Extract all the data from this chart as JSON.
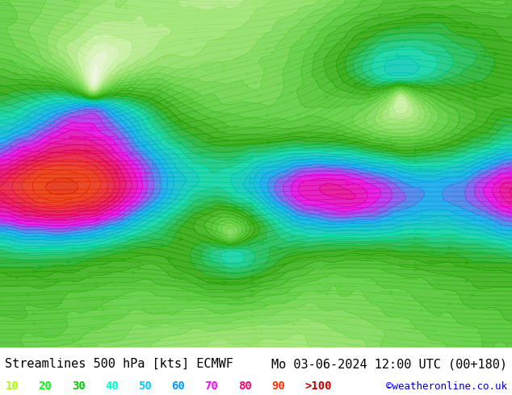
{
  "title_left": "Streamlines 500 hPa [kts] ECMWF",
  "title_right": "Mo 03-06-2024 12:00 UTC (00+180)",
  "credit": "©weatheronline.co.uk",
  "legend_values": [
    "10",
    "20",
    "30",
    "40",
    "50",
    "60",
    "70",
    "80",
    "90",
    ">100"
  ],
  "legend_colors": [
    "#aaff00",
    "#00ff00",
    "#00cc00",
    "#00ffcc",
    "#00ccff",
    "#0099ff",
    "#ff00ff",
    "#ff0066",
    "#ff3300",
    "#cc0000"
  ],
  "bg_color": "#ffffff",
  "map_bg": "#f0f0e8",
  "bottom_bar_color": "#ffffff",
  "title_color": "#000000",
  "credit_color": "#0000cc",
  "title_fontsize": 11,
  "legend_fontsize": 10,
  "fig_width": 6.34,
  "fig_height": 4.9,
  "dpi": 100
}
